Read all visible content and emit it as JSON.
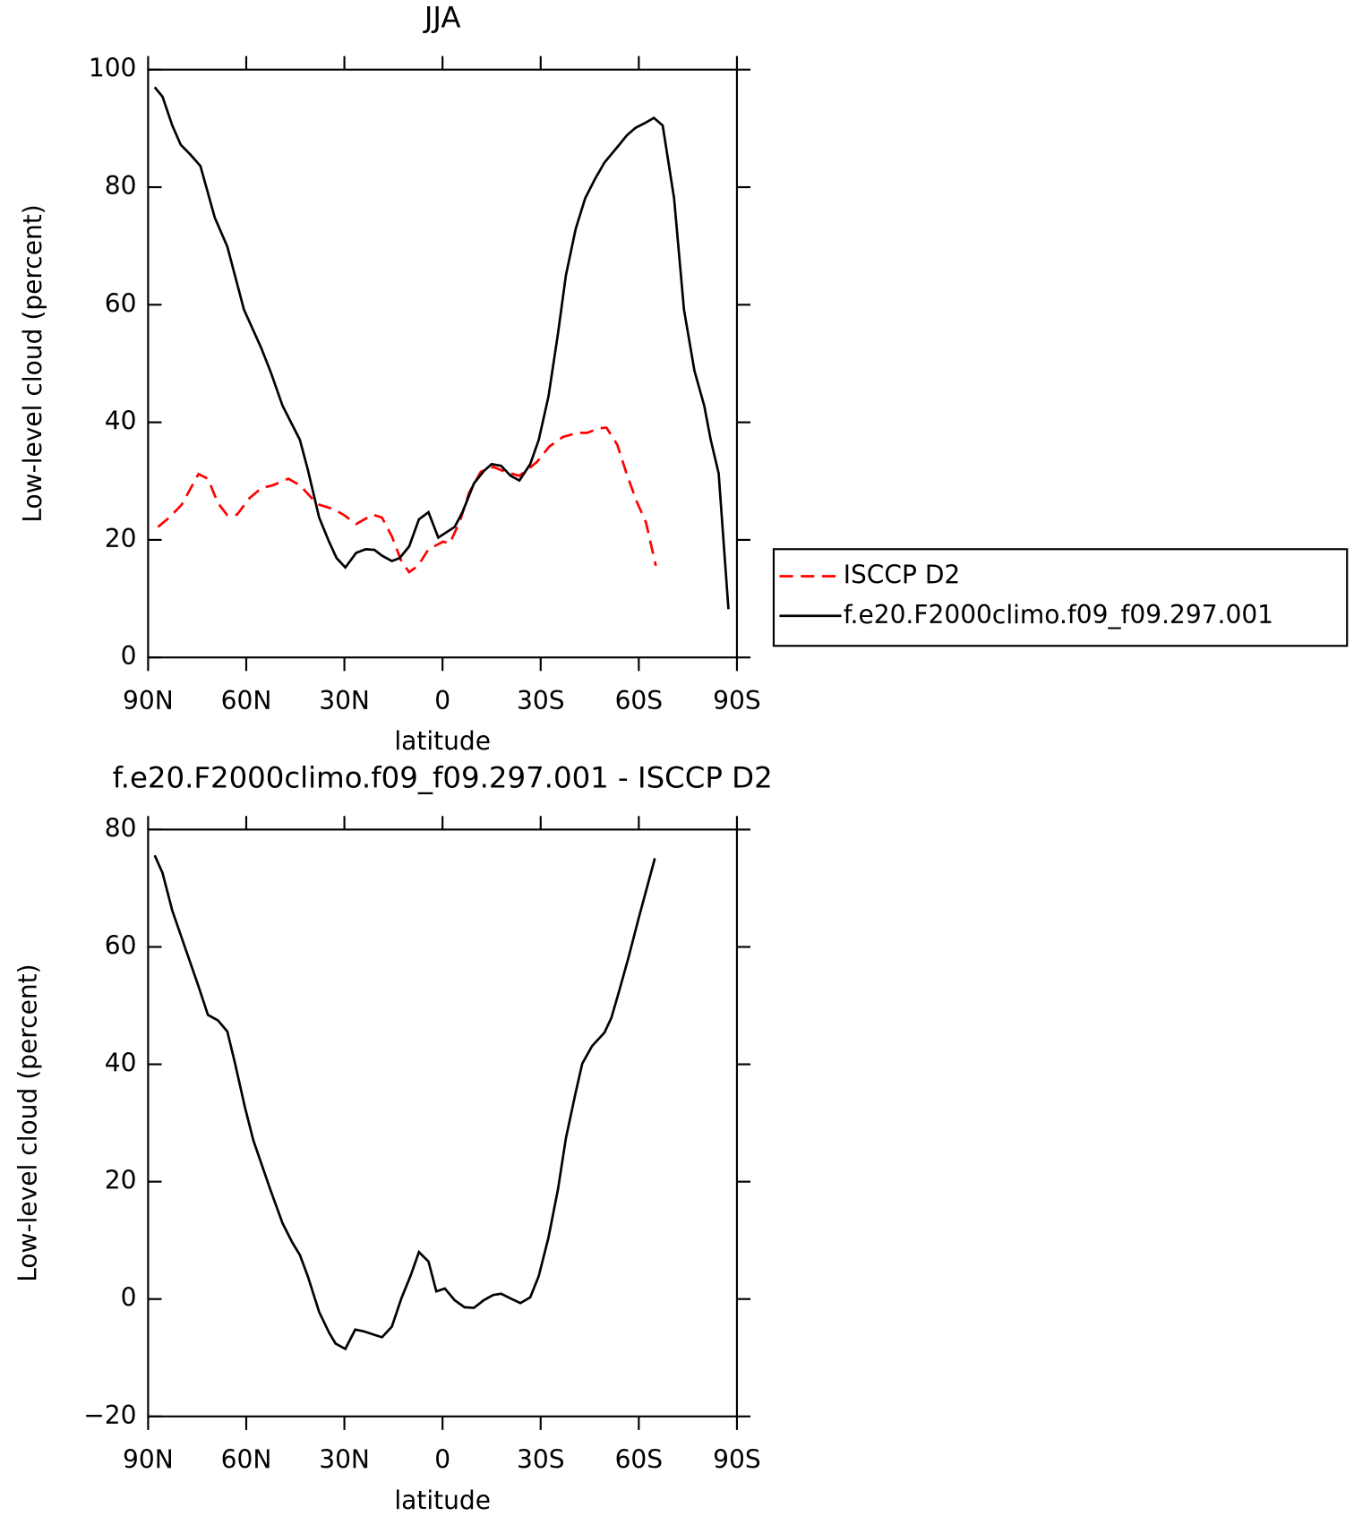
{
  "chart_data": [
    {
      "type": "line",
      "title": "JJA",
      "xlabel": "latitude",
      "ylabel": "Low-level cloud (percent)",
      "xlim": [
        90,
        -90
      ],
      "xticks": [
        {
          "value": 90,
          "label": "90N"
        },
        {
          "value": 60,
          "label": "60N"
        },
        {
          "value": 30,
          "label": "30N"
        },
        0,
        {
          "value": -30,
          "label": "30S"
        },
        {
          "value": -60,
          "label": "60S"
        },
        {
          "value": -90,
          "label": "90S"
        }
      ],
      "ylim": [
        0,
        100
      ],
      "yticks": [
        0,
        20,
        40,
        60,
        80,
        100
      ],
      "legend": "right",
      "series": [
        {
          "name": "ISCCP D2",
          "color": "#ff0000",
          "linestyle": "dashed",
          "x": [
            87,
            83.5,
            79.7,
            74.6,
            71.7,
            68.7,
            65.8,
            62.8,
            59,
            55.4,
            51.9,
            47.1,
            43.6,
            40,
            37.7,
            33.2,
            30.3,
            26.4,
            21.4,
            18.5,
            15.5,
            12.6,
            10.2,
            7.5,
            4.3,
            -0.2,
            -2.2,
            -5.2,
            -8.1,
            -11.7,
            -15.5,
            -19.1,
            -23.5,
            -28.8,
            -32.7,
            -36.8,
            -41.2,
            -44.2,
            -48,
            -50.1,
            -53.4,
            -56.3,
            -59.3,
            -62.2,
            -65.2
          ],
          "values": [
            22.2,
            23.8,
            26,
            31.2,
            30.4,
            26.3,
            24.2,
            24.3,
            27.1,
            28.8,
            29.3,
            30.4,
            29.3,
            27.1,
            26,
            25.2,
            24.3,
            22.7,
            24.3,
            23.8,
            20.6,
            16.4,
            14.5,
            15.6,
            18.4,
            19.7,
            19.4,
            23,
            28,
            31.6,
            32.4,
            31.6,
            30.9,
            33.2,
            35.9,
            37.5,
            38.2,
            38.2,
            39,
            39.1,
            36.2,
            31.2,
            26.6,
            23,
            15.6
          ]
        },
        {
          "name": "f.e20.F2000climo.f09_f09.297.001",
          "color": "#000000",
          "linestyle": "solid",
          "x": [
            88,
            85.6,
            82.6,
            80,
            77,
            74,
            69.6,
            65.8,
            60.7,
            55.4,
            52.5,
            48.9,
            43.6,
            41.2,
            37.7,
            34.7,
            32.4,
            29.7,
            26.4,
            23.5,
            20.8,
            18.5,
            15.5,
            13.1,
            10.2,
            7.2,
            4.3,
            1.3,
            -3.7,
            -6.1,
            -9.6,
            -12.6,
            -15,
            -17.9,
            -20.8,
            -23.5,
            -26.8,
            -29.4,
            -32.4,
            -35.3,
            -37.7,
            -40.7,
            -43.6,
            -46.6,
            -49.5,
            -54,
            -56.3,
            -59,
            -62.2,
            -64.6,
            -67.3,
            -70.8,
            -73.8,
            -77,
            -80,
            -82,
            -84.4,
            -87.4
          ],
          "values": [
            97,
            95.4,
            90.5,
            87.2,
            85.5,
            83.6,
            74.8,
            69.9,
            59.2,
            52.6,
            48.5,
            42.8,
            37,
            32,
            23.8,
            19.7,
            16.9,
            15.3,
            17.8,
            18.4,
            18.3,
            17.3,
            16.4,
            16.9,
            18.9,
            23.5,
            24.7,
            20.4,
            22.2,
            24.7,
            29.6,
            31.7,
            32.9,
            32.6,
            30.9,
            30.1,
            32.9,
            37,
            44.4,
            55.1,
            65,
            72.9,
            78.1,
            81.4,
            84.2,
            87.2,
            88.8,
            90.1,
            91,
            91.8,
            90.5,
            78.1,
            59.2,
            48.8,
            42.8,
            37,
            31.3,
            8.2
          ]
        }
      ]
    },
    {
      "type": "line",
      "title": "f.e20.F2000climo.f09_f09.297.001 - ISCCP D2",
      "xlabel": "latitude",
      "ylabel": "Low-level cloud (percent)",
      "xlim": [
        90,
        -90
      ],
      "xticks": [
        {
          "value": 90,
          "label": "90N"
        },
        {
          "value": 60,
          "label": "60N"
        },
        {
          "value": 30,
          "label": "30N"
        },
        0,
        {
          "value": -30,
          "label": "30S"
        },
        {
          "value": -60,
          "label": "60S"
        },
        {
          "value": -90,
          "label": "90S"
        }
      ],
      "ylim": [
        -20,
        80
      ],
      "yticks": [
        {
          "value": -20,
          "label": "−20"
        },
        0,
        20,
        40,
        60,
        80
      ],
      "series": [
        {
          "color": "#000000",
          "linestyle": "solid",
          "x": [
            88,
            85.6,
            82.6,
            78.2,
            74.6,
            71.7,
            68.7,
            65.8,
            63.4,
            60.4,
            57.8,
            52.5,
            48.9,
            46,
            43.6,
            41.2,
            37.7,
            34.7,
            32.7,
            29.7,
            26.7,
            24.1,
            21.4,
            18.5,
            15.5,
            12.6,
            9.6,
            7.2,
            4.3,
            1.9,
            -0.7,
            -3.7,
            -6.7,
            -9.6,
            -12.6,
            -15.5,
            -17.9,
            -20.8,
            -23.8,
            -26.8,
            -29.4,
            -32.4,
            -35.3,
            -37.7,
            -40.7,
            -42.7,
            -45.7,
            -49.5,
            -51.6,
            -54,
            -56.9,
            -59.9,
            -64.9
          ],
          "values": [
            75.6,
            72.6,
            66.2,
            59.1,
            53.3,
            48.4,
            47.5,
            45.6,
            40.1,
            32.7,
            27,
            18.4,
            12.9,
            9.7,
            7.5,
            3.9,
            -2.2,
            -5.7,
            -7.6,
            -8.5,
            -5.2,
            -5.5,
            -6,
            -6.5,
            -4.7,
            0.1,
            4.2,
            8,
            6.4,
            1.3,
            1.8,
            -0.2,
            -1.4,
            -1.5,
            -0.2,
            0.7,
            0.9,
            0.1,
            -0.7,
            0.3,
            3.9,
            10.5,
            18.7,
            27.4,
            35.2,
            40.1,
            43.1,
            45.4,
            47.9,
            52.5,
            58.3,
            64.8,
            75.1
          ]
        }
      ]
    }
  ]
}
